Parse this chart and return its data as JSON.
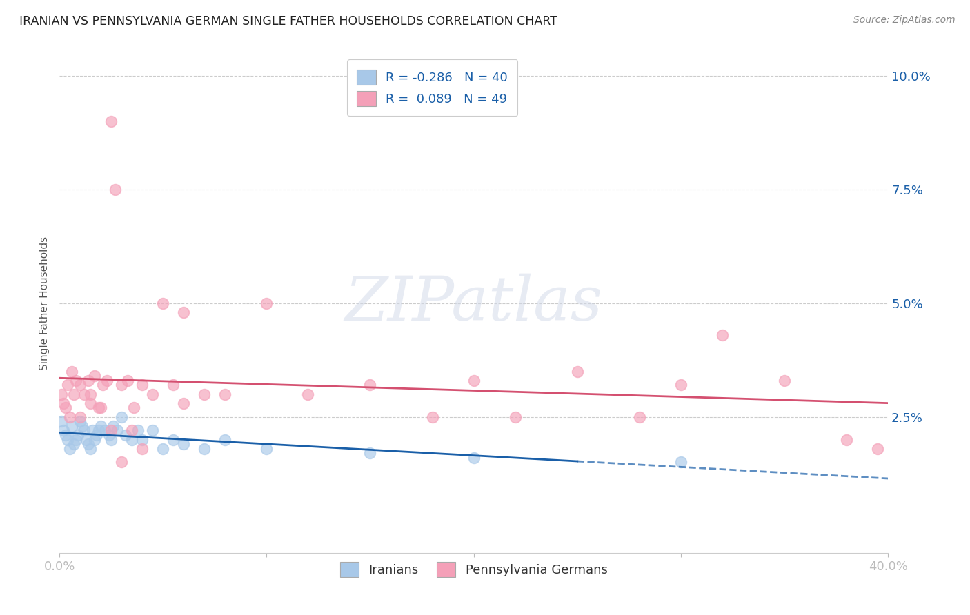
{
  "title": "IRANIAN VS PENNSYLVANIA GERMAN SINGLE FATHER HOUSEHOLDS CORRELATION CHART",
  "source": "Source: ZipAtlas.com",
  "ylabel": "Single Father Households",
  "ytick_labels": [
    "2.5%",
    "5.0%",
    "7.5%",
    "10.0%"
  ],
  "ytick_values": [
    0.025,
    0.05,
    0.075,
    0.1
  ],
  "xlim": [
    0.0,
    0.4
  ],
  "ylim": [
    -0.005,
    0.105
  ],
  "legend_iranian": "R = -0.286   N = 40",
  "legend_pg": "R =  0.089   N = 49",
  "iranian_color": "#a8c8e8",
  "pg_color": "#f4a0b8",
  "iranian_line_color": "#1a5fa8",
  "pg_line_color": "#d45070",
  "watermark": "ZIPatlas",
  "iranian_x": [
    0.001,
    0.002,
    0.003,
    0.004,
    0.005,
    0.006,
    0.007,
    0.008,
    0.009,
    0.01,
    0.011,
    0.012,
    0.013,
    0.014,
    0.015,
    0.016,
    0.017,
    0.018,
    0.019,
    0.02,
    0.022,
    0.024,
    0.025,
    0.026,
    0.028,
    0.03,
    0.032,
    0.035,
    0.038,
    0.04,
    0.045,
    0.05,
    0.055,
    0.06,
    0.07,
    0.08,
    0.1,
    0.15,
    0.2,
    0.3
  ],
  "iranian_y": [
    0.024,
    0.022,
    0.021,
    0.02,
    0.018,
    0.023,
    0.019,
    0.02,
    0.021,
    0.024,
    0.023,
    0.022,
    0.02,
    0.019,
    0.018,
    0.022,
    0.02,
    0.021,
    0.022,
    0.023,
    0.022,
    0.021,
    0.02,
    0.023,
    0.022,
    0.025,
    0.021,
    0.02,
    0.022,
    0.02,
    0.022,
    0.018,
    0.02,
    0.019,
    0.018,
    0.02,
    0.018,
    0.017,
    0.016,
    0.015
  ],
  "pg_x": [
    0.001,
    0.002,
    0.003,
    0.004,
    0.005,
    0.006,
    0.007,
    0.008,
    0.01,
    0.012,
    0.014,
    0.015,
    0.017,
    0.019,
    0.021,
    0.023,
    0.025,
    0.027,
    0.03,
    0.033,
    0.036,
    0.04,
    0.045,
    0.055,
    0.06,
    0.07,
    0.08,
    0.1,
    0.12,
    0.15,
    0.18,
    0.2,
    0.22,
    0.25,
    0.28,
    0.3,
    0.32,
    0.35,
    0.38,
    0.395,
    0.01,
    0.015,
    0.02,
    0.025,
    0.03,
    0.035,
    0.04,
    0.05,
    0.06
  ],
  "pg_y": [
    0.03,
    0.028,
    0.027,
    0.032,
    0.025,
    0.035,
    0.03,
    0.033,
    0.032,
    0.03,
    0.033,
    0.028,
    0.034,
    0.027,
    0.032,
    0.033,
    0.09,
    0.075,
    0.032,
    0.033,
    0.027,
    0.032,
    0.03,
    0.032,
    0.048,
    0.03,
    0.03,
    0.05,
    0.03,
    0.032,
    0.025,
    0.033,
    0.025,
    0.035,
    0.025,
    0.032,
    0.043,
    0.033,
    0.02,
    0.018,
    0.025,
    0.03,
    0.027,
    0.022,
    0.015,
    0.022,
    0.018,
    0.05,
    0.028
  ],
  "xticks": [
    0.0,
    0.1,
    0.2,
    0.3,
    0.4
  ],
  "xticklabels": [
    "0.0%",
    "",
    "",
    "",
    "40.0%"
  ]
}
